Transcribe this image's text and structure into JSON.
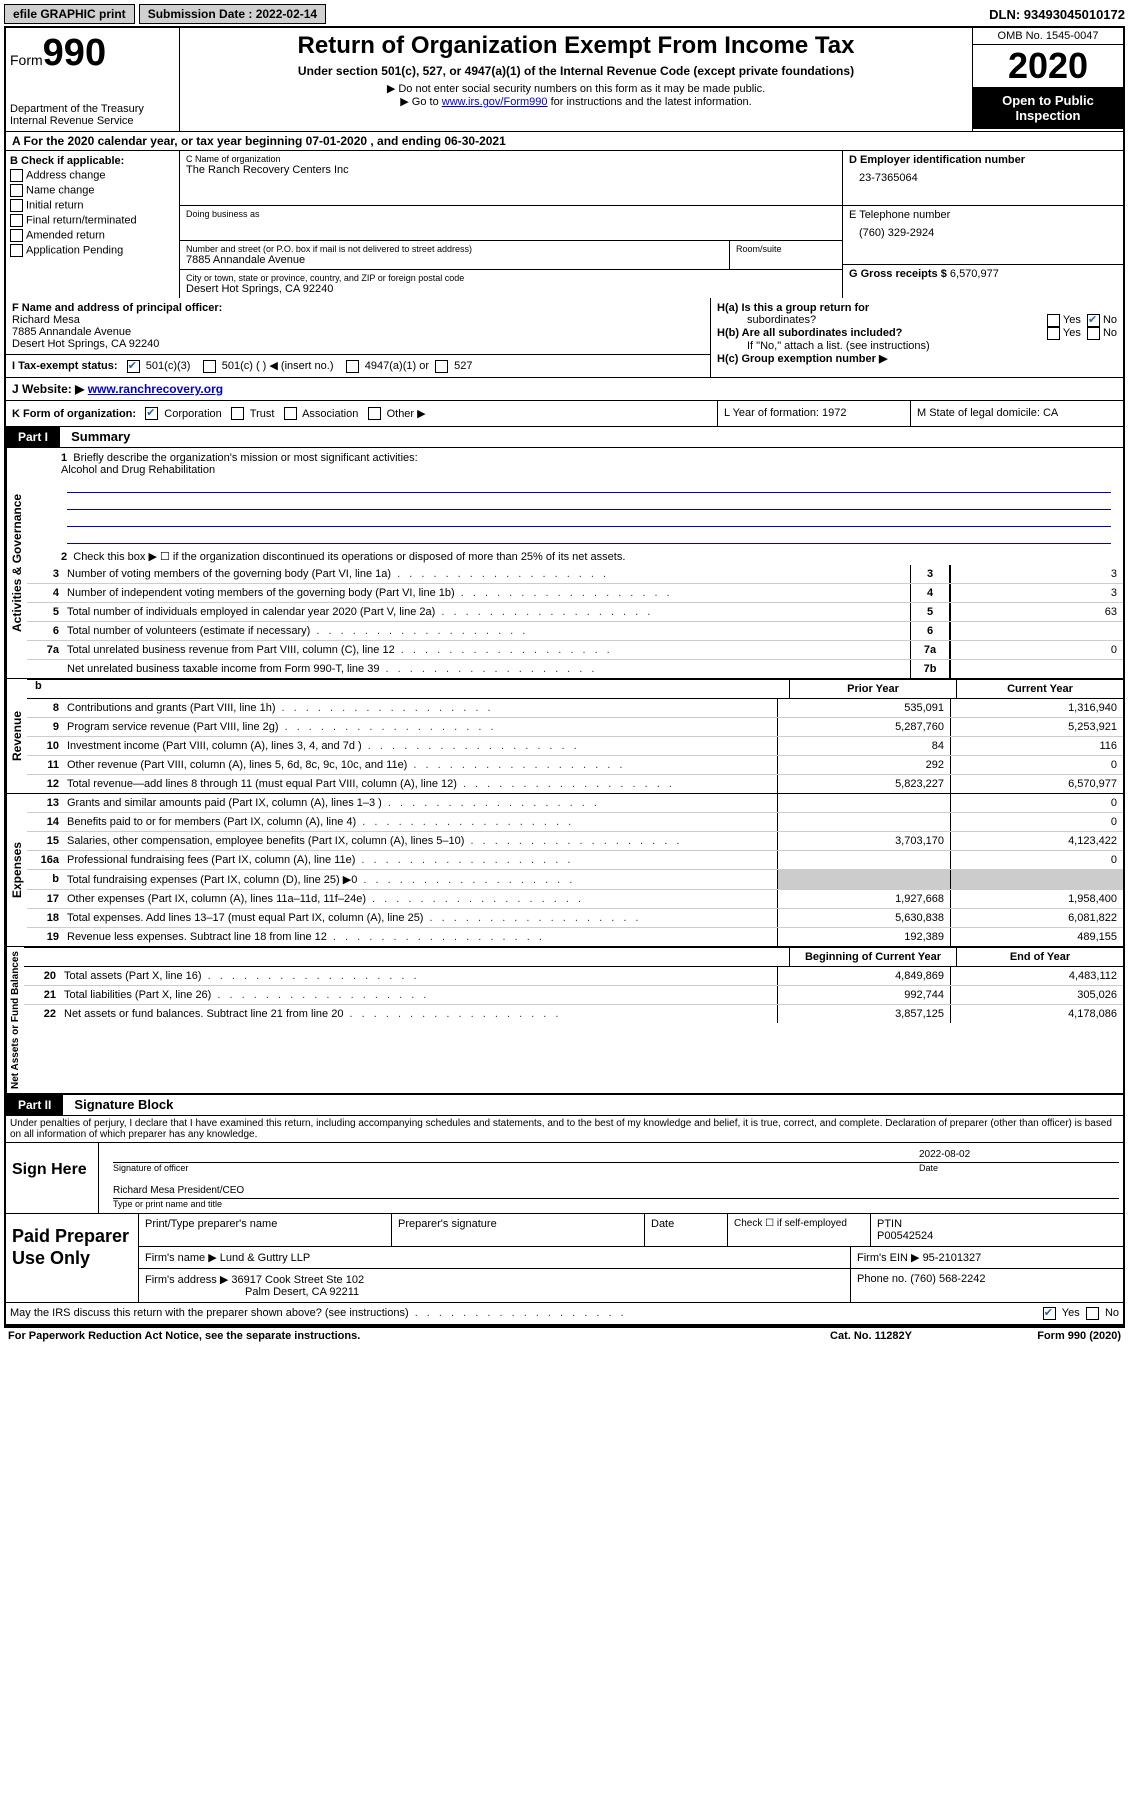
{
  "topbar": {
    "efile": "efile GRAPHIC print",
    "submission_label": "Submission Date : 2022-02-14",
    "dln": "DLN: 93493045010172"
  },
  "header": {
    "form_label": "Form",
    "form_number": "990",
    "dept": "Department of the Treasury",
    "irs": "Internal Revenue Service",
    "title": "Return of Organization Exempt From Income Tax",
    "subtitle": "Under section 501(c), 527, or 4947(a)(1) of the Internal Revenue Code (except private foundations)",
    "note1": "▶ Do not enter social security numbers on this form as it may be made public.",
    "note2_pre": "▶ Go to ",
    "note2_link": "www.irs.gov/Form990",
    "note2_post": " for instructions and the latest information.",
    "omb": "OMB No. 1545-0047",
    "year": "2020",
    "inspection": "Open to Public Inspection"
  },
  "lineA": "A For the 2020 calendar year, or tax year beginning 07-01-2020    , and ending 06-30-2021",
  "boxB": {
    "header": "B Check if applicable:",
    "items": [
      "Address change",
      "Name change",
      "Initial return",
      "Final return/terminated",
      "Amended return",
      "Application Pending"
    ]
  },
  "boxC": {
    "label": "C Name of organization",
    "name": "The Ranch Recovery Centers Inc",
    "dba_label": "Doing business as",
    "street_label": "Number and street (or P.O. box if mail is not delivered to street address)",
    "room_label": "Room/suite",
    "street": "7885 Annandale Avenue",
    "city_label": "City or town, state or province, country, and ZIP or foreign postal code",
    "city": "Desert Hot Springs, CA  92240"
  },
  "boxD": {
    "ein_label": "D Employer identification number",
    "ein": "23-7365064",
    "tel_label": "E Telephone number",
    "tel": "(760) 329-2924",
    "gross_label": "G Gross receipts $ ",
    "gross": "6,570,977"
  },
  "boxF": {
    "label": "F  Name and address of principal officer:",
    "name": "Richard Mesa",
    "addr1": "7885 Annandale Avenue",
    "addr2": "Desert Hot Springs, CA  92240"
  },
  "boxH": {
    "a": "H(a)  Is this a group return for",
    "a2": "subordinates?",
    "b": "H(b)  Are all subordinates included?",
    "note": "If \"No,\" attach a list. (see instructions)",
    "c": "H(c)  Group exemption number ▶"
  },
  "boxI": {
    "label": "I    Tax-exempt status:",
    "opt1": "501(c)(3)",
    "opt2": "501(c) (   ) ◀ (insert no.)",
    "opt3": "4947(a)(1) or",
    "opt4": "527"
  },
  "boxJ": {
    "label": "J    Website: ▶  ",
    "url": "www.ranchrecovery.org"
  },
  "boxK": {
    "label": "K Form of organization:",
    "opts": [
      "Corporation",
      "Trust",
      "Association",
      "Other ▶"
    ],
    "L": "L Year of formation: 1972",
    "M": "M State of legal domicile: CA"
  },
  "part1": {
    "label": "Part I",
    "title": "Summary"
  },
  "gov": {
    "label": "Activities & Governance",
    "l1": "Briefly describe the organization's mission or most significant activities:",
    "mission": "Alcohol and Drug Rehabilitation",
    "l2": "Check this box ▶ ☐  if the organization discontinued its operations or disposed of more than 25% of its net assets.",
    "rows": [
      {
        "n": "3",
        "t": "Number of voting members of the governing body (Part VI, line 1a)",
        "k": "3",
        "v": "3"
      },
      {
        "n": "4",
        "t": "Number of independent voting members of the governing body (Part VI, line 1b)",
        "k": "4",
        "v": "3"
      },
      {
        "n": "5",
        "t": "Total number of individuals employed in calendar year 2020 (Part V, line 2a)",
        "k": "5",
        "v": "63"
      },
      {
        "n": "6",
        "t": "Total number of volunteers (estimate if necessary)",
        "k": "6",
        "v": ""
      },
      {
        "n": "7a",
        "t": "Total unrelated business revenue from Part VIII, column (C), line 12",
        "k": "7a",
        "v": "0"
      },
      {
        "n": "",
        "t": "Net unrelated business taxable income from Form 990-T, line 39",
        "k": "7b",
        "v": ""
      }
    ]
  },
  "rev": {
    "label": "Revenue",
    "hdr_prior": "Prior Year",
    "hdr_curr": "Current Year",
    "rows": [
      {
        "n": "8",
        "t": "Contributions and grants (Part VIII, line 1h)",
        "p": "535,091",
        "c": "1,316,940"
      },
      {
        "n": "9",
        "t": "Program service revenue (Part VIII, line 2g)",
        "p": "5,287,760",
        "c": "5,253,921"
      },
      {
        "n": "10",
        "t": "Investment income (Part VIII, column (A), lines 3, 4, and 7d )",
        "p": "84",
        "c": "116"
      },
      {
        "n": "11",
        "t": "Other revenue (Part VIII, column (A), lines 5, 6d, 8c, 9c, 10c, and 11e)",
        "p": "292",
        "c": "0"
      },
      {
        "n": "12",
        "t": "Total revenue—add lines 8 through 11 (must equal Part VIII, column (A), line 12)",
        "p": "5,823,227",
        "c": "6,570,977"
      }
    ]
  },
  "exp": {
    "label": "Expenses",
    "rows": [
      {
        "n": "13",
        "t": "Grants and similar amounts paid (Part IX, column (A), lines 1–3 )",
        "p": "",
        "c": "0"
      },
      {
        "n": "14",
        "t": "Benefits paid to or for members (Part IX, column (A), line 4)",
        "p": "",
        "c": "0"
      },
      {
        "n": "15",
        "t": "Salaries, other compensation, employee benefits (Part IX, column (A), lines 5–10)",
        "p": "3,703,170",
        "c": "4,123,422"
      },
      {
        "n": "16a",
        "t": "Professional fundraising fees (Part IX, column (A), line 11e)",
        "p": "",
        "c": "0"
      },
      {
        "n": "b",
        "t": "Total fundraising expenses (Part IX, column (D), line 25) ▶0",
        "p": "shade",
        "c": "shade"
      },
      {
        "n": "17",
        "t": "Other expenses (Part IX, column (A), lines 11a–11d, 11f–24e)",
        "p": "1,927,668",
        "c": "1,958,400"
      },
      {
        "n": "18",
        "t": "Total expenses. Add lines 13–17 (must equal Part IX, column (A), line 25)",
        "p": "5,630,838",
        "c": "6,081,822"
      },
      {
        "n": "19",
        "t": "Revenue less expenses. Subtract line 18 from line 12",
        "p": "192,389",
        "c": "489,155"
      }
    ]
  },
  "net": {
    "label": "Net Assets or Fund Balances",
    "hdr_prior": "Beginning of Current Year",
    "hdr_curr": "End of Year",
    "rows": [
      {
        "n": "20",
        "t": "Total assets (Part X, line 16)",
        "p": "4,849,869",
        "c": "4,483,112"
      },
      {
        "n": "21",
        "t": "Total liabilities (Part X, line 26)",
        "p": "992,744",
        "c": "305,026"
      },
      {
        "n": "22",
        "t": "Net assets or fund balances. Subtract line 21 from line 20",
        "p": "3,857,125",
        "c": "4,178,086"
      }
    ]
  },
  "part2": {
    "label": "Part II",
    "title": "Signature Block",
    "decl": "Under penalties of perjury, I declare that I have examined this return, including accompanying schedules and statements, and to the best of my knowledge and belief, it is true, correct, and complete. Declaration of preparer (other than officer) is based on all information of which preparer has any knowledge."
  },
  "sign": {
    "label": "Sign Here",
    "sig": "Signature of officer",
    "date_label": "Date",
    "date": "2022-08-02",
    "name": "Richard Mesa  President/CEO",
    "name_label": "Type or print name and title"
  },
  "paid": {
    "label": "Paid Preparer Use Only",
    "h1": "Print/Type preparer's name",
    "h2": "Preparer's signature",
    "h3": "Date",
    "h4_pre": "Check ☐ if self-employed",
    "h5": "PTIN",
    "ptin": "P00542524",
    "firm_label": "Firm's name      ▶ ",
    "firm": "Lund & Guttry LLP",
    "ein_label": "Firm's EIN ▶ ",
    "ein": "95-2101327",
    "addr_label": "Firm's address ▶ ",
    "addr1": "36917 Cook Street Ste 102",
    "addr2": "Palm Desert, CA  92211",
    "phone_label": "Phone no. ",
    "phone": "(760) 568-2242"
  },
  "footer": {
    "q": "May the IRS discuss this return with the preparer shown above? (see instructions)",
    "yes": "Yes",
    "no": "No",
    "pra": "For Paperwork Reduction Act Notice, see the separate instructions.",
    "cat": "Cat. No. 11282Y",
    "form": "Form 990 (2020)"
  }
}
